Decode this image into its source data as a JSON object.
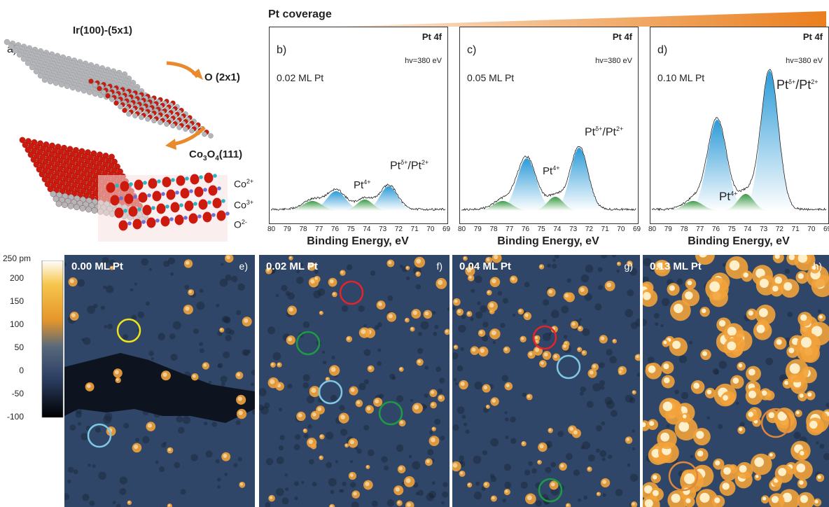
{
  "header": {
    "coverage_label": "Pt coverage",
    "gradient_start": "#fbe9d8",
    "gradient_end": "#ea7f1e"
  },
  "panel_a": {
    "letter": "a)",
    "substrate": "Ir(100)-(5x1)",
    "oxygen": "O (2x1)",
    "oxide_main": "Co",
    "oxide_sub1": "3",
    "oxide_mid": "O",
    "oxide_sub2": "4",
    "oxide_tail": "(111)",
    "ion_co2": "Co",
    "ion_co2_sup": "2+",
    "ion_co3": "Co",
    "ion_co3_sup": "3+",
    "ion_o": "O",
    "ion_o_sup": "2-",
    "colors": {
      "o_atom": "#cc1b0e",
      "ir_atom": "#b3b5b8",
      "co2": "#6e6fd6",
      "co3": "#29b3c7",
      "arrow": "#e98a2c"
    }
  },
  "xps": {
    "x_ticks": [
      "80",
      "79",
      "78",
      "77",
      "76",
      "75",
      "74",
      "73",
      "72",
      "71",
      "70",
      "69"
    ],
    "xlabel": "Binding Energy, eV",
    "panels": [
      {
        "letter": "b)",
        "coverage": "0.02 ML Pt",
        "title": "Pt 4f",
        "photon": "hv=380 eV",
        "label_pt4": "Pt",
        "label_pt4_sup": "4+",
        "label_mixed": "Pt",
        "label_mixed_sup": "δ+",
        "label_mixed_slash": "/Pt",
        "label_mixed_sup2": "2+"
      },
      {
        "letter": "c)",
        "coverage": "0.05 ML Pt",
        "title": "Pt 4f",
        "photon": "hv=380 eV",
        "label_pt4": "Pt",
        "label_pt4_sup": "4+",
        "label_mixed": "Pt",
        "label_mixed_sup": "δ+",
        "label_mixed_slash": "/Pt",
        "label_mixed_sup2": "2+"
      },
      {
        "letter": "d)",
        "coverage": "0.10 ML Pt",
        "title": "Pt 4f",
        "photon": "hv=380 eV",
        "label_pt4": "Pt",
        "label_pt4_sup": "4+",
        "label_mixed": "Pt",
        "label_mixed_sup": "δ+",
        "label_mixed_slash": "/Pt",
        "label_mixed_sup2": "2+"
      }
    ],
    "colors": {
      "blue_peak": "#2d9bd8",
      "green_peak": "#3a9b48",
      "fit_line": "#222222"
    }
  },
  "colorbar": {
    "unit_label": "250 pm",
    "ticks": [
      "200",
      "150",
      "100",
      "50",
      "0",
      "-50",
      "-100"
    ]
  },
  "stm": {
    "panels": [
      {
        "letter": "e)",
        "coverage": "0.00 ML Pt"
      },
      {
        "letter": "f)",
        "coverage": "0.02 ML Pt"
      },
      {
        "letter": "g)",
        "coverage": "0.04 ML Pt"
      },
      {
        "letter": "h)",
        "coverage": "0.13 ML Pt"
      }
    ],
    "colors": {
      "bg": "#2f4668",
      "step_dark": "#0d1420",
      "particle": "#f2a23a",
      "red": "#e3242b",
      "green": "#1f9a44",
      "cyan": "#7ec8e3",
      "yellow": "#f0e21a",
      "orange": "#e0873a"
    }
  }
}
